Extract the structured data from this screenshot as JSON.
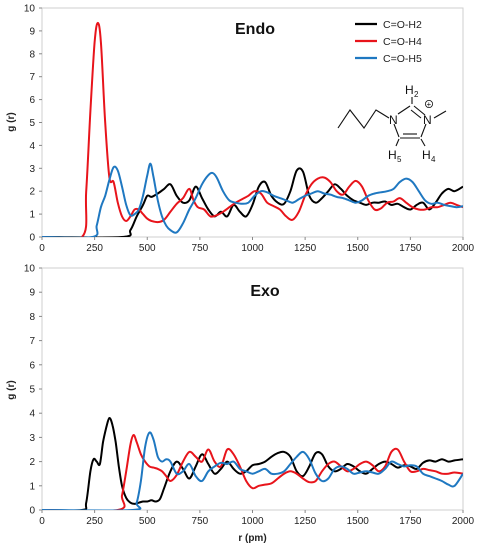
{
  "colors": {
    "H2": "#000000",
    "H4": "#e8141b",
    "H5": "#1f78c1"
  },
  "chart_data": [
    {
      "type": "line",
      "title": "Endo",
      "xlabel": "",
      "ylabel": "g (r)",
      "xlim": [
        0,
        2000
      ],
      "ylim": [
        0,
        10
      ],
      "xticks": [
        "0",
        "250",
        "500",
        "750",
        "1000",
        "1250",
        "1500",
        "1750",
        "2000"
      ],
      "yticks": [
        "0",
        "1",
        "2",
        "3",
        "4",
        "5",
        "6",
        "7",
        "8",
        "9",
        "10"
      ],
      "legend": "top-right",
      "series": [
        {
          "name": "C=O-H2",
          "color": "#000000",
          "x": [
            0,
            380,
            420,
            450,
            480,
            500,
            520,
            550,
            580,
            610,
            640,
            670,
            700,
            730,
            760,
            790,
            820,
            850,
            880,
            910,
            940,
            970,
            1000,
            1030,
            1060,
            1090,
            1120,
            1150,
            1180,
            1210,
            1240,
            1270,
            1300,
            1330,
            1360,
            1390,
            1420,
            1450,
            1480,
            1510,
            1540,
            1570,
            1600,
            1630,
            1660,
            1690,
            1720,
            1750,
            1780,
            1810,
            1840,
            1870,
            1900,
            1930,
            1960,
            2000
          ],
          "y": [
            0,
            0,
            0.3,
            0.9,
            1.4,
            1.8,
            1.75,
            1.9,
            2.1,
            2.3,
            1.8,
            1.5,
            1.6,
            2.2,
            1.7,
            1.2,
            0.9,
            1.1,
            0.9,
            1.4,
            1.1,
            0.9,
            1.4,
            2.2,
            2.4,
            1.8,
            1.5,
            1.45,
            2.0,
            2.9,
            2.85,
            1.8,
            1.5,
            1.7,
            2.0,
            2.3,
            2.1,
            1.8,
            1.6,
            1.5,
            1.4,
            1.5,
            1.5,
            1.55,
            1.4,
            1.45,
            1.3,
            1.2,
            1.4,
            1.5,
            1.2,
            1.5,
            1.9,
            2.1,
            2.0,
            2.2
          ]
        },
        {
          "name": "C=O-H4",
          "color": "#e8141b",
          "x": [
            0,
            190,
            210,
            230,
            250,
            265,
            280,
            300,
            320,
            340,
            360,
            380,
            400,
            420,
            440,
            460,
            480,
            500,
            520,
            550,
            580,
            610,
            640,
            670,
            700,
            720,
            740,
            770,
            800,
            830,
            860,
            890,
            920,
            950,
            980,
            1010,
            1040,
            1070,
            1100,
            1130,
            1160,
            1190,
            1220,
            1250,
            1280,
            1310,
            1340,
            1370,
            1400,
            1430,
            1460,
            1490,
            1520,
            1550,
            1580,
            1610,
            1640,
            1670,
            1700,
            1730,
            1760,
            1790,
            1820,
            1850,
            1880,
            1910,
            1940,
            1970,
            2000
          ],
          "y": [
            0,
            0,
            2.0,
            5.5,
            8.5,
            9.35,
            8.5,
            5.0,
            2.6,
            2.4,
            1.5,
            0.9,
            0.7,
            0.9,
            1.2,
            1.2,
            1.0,
            0.8,
            0.7,
            0.65,
            0.75,
            1.1,
            1.45,
            1.7,
            2.1,
            1.6,
            1.3,
            1.2,
            0.9,
            0.95,
            1.1,
            1.3,
            1.5,
            1.65,
            1.8,
            2.0,
            1.9,
            1.5,
            1.35,
            1.2,
            0.9,
            0.75,
            1.1,
            1.8,
            2.3,
            2.55,
            2.6,
            2.4,
            2.0,
            1.85,
            2.2,
            2.45,
            2.2,
            1.6,
            1.2,
            1.25,
            1.5,
            1.55,
            1.7,
            1.5,
            1.3,
            1.2,
            1.2,
            1.3,
            1.3,
            1.4,
            1.5,
            1.4,
            1.3
          ]
        },
        {
          "name": "C=O-H5",
          "color": "#1f78c1",
          "x": [
            0,
            240,
            260,
            280,
            300,
            320,
            340,
            360,
            380,
            400,
            420,
            440,
            460,
            480,
            500,
            515,
            530,
            550,
            570,
            590,
            610,
            640,
            670,
            700,
            730,
            760,
            790,
            810,
            830,
            860,
            890,
            920,
            950,
            980,
            1010,
            1040,
            1070,
            1100,
            1130,
            1160,
            1190,
            1220,
            1250,
            1280,
            1310,
            1340,
            1370,
            1400,
            1430,
            1460,
            1490,
            1520,
            1550,
            1580,
            1610,
            1640,
            1670,
            1700,
            1730,
            1760,
            1790,
            1820,
            1850,
            1880,
            1910,
            1940,
            1970,
            2000
          ],
          "y": [
            0,
            0,
            0.5,
            1.3,
            1.8,
            2.5,
            3.05,
            2.9,
            2.2,
            1.4,
            0.95,
            1.0,
            1.2,
            1.8,
            2.7,
            3.2,
            2.6,
            1.6,
            0.9,
            0.5,
            0.3,
            0.2,
            0.6,
            1.2,
            1.7,
            2.3,
            2.7,
            2.8,
            2.6,
            2.0,
            1.6,
            1.5,
            1.45,
            1.5,
            1.8,
            2.0,
            1.95,
            1.8,
            1.7,
            1.6,
            1.5,
            1.65,
            1.8,
            1.9,
            2.0,
            1.9,
            1.85,
            1.75,
            1.7,
            1.6,
            1.5,
            1.6,
            1.8,
            1.9,
            1.95,
            2.0,
            2.1,
            2.4,
            2.55,
            2.4,
            2.0,
            1.6,
            1.45,
            1.5,
            1.4,
            1.35,
            1.3,
            1.35
          ]
        }
      ]
    },
    {
      "type": "line",
      "title": "Exo",
      "xlabel": "r (pm)",
      "ylabel": "g (r)",
      "xlim": [
        0,
        2000
      ],
      "ylim": [
        0,
        10
      ],
      "xticks": [
        "0",
        "250",
        "500",
        "750",
        "1000",
        "1250",
        "1500",
        "1750",
        "2000"
      ],
      "yticks": [
        "0",
        "1",
        "2",
        "3",
        "4",
        "5",
        "6",
        "7",
        "8",
        "9",
        "10"
      ],
      "series": [
        {
          "name": "C=O-H2",
          "color": "#000000",
          "x": [
            0,
            190,
            210,
            230,
            245,
            260,
            275,
            290,
            305,
            320,
            335,
            350,
            365,
            380,
            400,
            420,
            440,
            460,
            480,
            500,
            520,
            540,
            560,
            580,
            610,
            640,
            670,
            700,
            730,
            760,
            790,
            820,
            850,
            880,
            910,
            940,
            970,
            1000,
            1030,
            1060,
            1090,
            1120,
            1150,
            1180,
            1210,
            1240,
            1270,
            1300,
            1330,
            1360,
            1390,
            1420,
            1450,
            1480,
            1510,
            1540,
            1570,
            1600,
            1630,
            1660,
            1690,
            1720,
            1750,
            1780,
            1810,
            1840,
            1870,
            1900,
            1930,
            1960,
            2000
          ],
          "y": [
            0,
            0,
            0.3,
            1.6,
            2.1,
            2.0,
            1.9,
            2.8,
            3.4,
            3.8,
            3.5,
            2.8,
            1.8,
            1.0,
            0.5,
            0.3,
            0.25,
            0.3,
            0.35,
            0.35,
            0.4,
            0.35,
            0.45,
            0.9,
            1.6,
            2.0,
            1.7,
            1.3,
            1.8,
            2.3,
            1.9,
            1.5,
            1.7,
            2.0,
            1.7,
            1.5,
            1.6,
            1.85,
            1.9,
            2.0,
            2.2,
            2.35,
            2.4,
            2.2,
            1.6,
            1.4,
            1.8,
            2.35,
            2.3,
            1.8,
            1.6,
            1.7,
            1.9,
            1.8,
            1.6,
            1.5,
            1.7,
            1.9,
            2.0,
            1.9,
            1.75,
            1.85,
            1.8,
            1.7,
            1.95,
            2.05,
            2.0,
            2.1,
            2.0,
            2.05,
            2.1
          ]
        },
        {
          "name": "C=O-H4",
          "color": "#e8141b",
          "x": [
            0,
            360,
            380,
            400,
            420,
            435,
            450,
            470,
            490,
            510,
            530,
            550,
            570,
            590,
            610,
            640,
            670,
            700,
            730,
            760,
            790,
            820,
            850,
            880,
            910,
            940,
            970,
            1000,
            1030,
            1060,
            1090,
            1120,
            1150,
            1180,
            1210,
            1240,
            1270,
            1300,
            1330,
            1360,
            1390,
            1420,
            1450,
            1480,
            1510,
            1540,
            1570,
            1600,
            1630,
            1660,
            1690,
            1720,
            1750,
            1780,
            1810,
            1840,
            1870,
            1900,
            1930,
            1960,
            2000
          ],
          "y": [
            0,
            0,
            0.6,
            1.6,
            2.7,
            3.1,
            2.8,
            2.3,
            2.0,
            1.8,
            1.75,
            1.7,
            1.6,
            1.4,
            1.2,
            1.45,
            2.0,
            2.4,
            2.2,
            2.0,
            2.5,
            2.0,
            1.8,
            2.5,
            2.3,
            1.8,
            1.2,
            0.9,
            1.0,
            1.05,
            1.1,
            1.3,
            1.5,
            1.6,
            1.5,
            1.3,
            1.15,
            1.2,
            1.6,
            1.9,
            2.0,
            1.8,
            1.6,
            1.7,
            1.9,
            2.0,
            1.85,
            1.6,
            1.8,
            2.4,
            2.5,
            2.0,
            1.6,
            1.6,
            1.7,
            1.65,
            1.6,
            1.5,
            1.5,
            1.55,
            1.5
          ]
        },
        {
          "name": "C=O-H5",
          "color": "#1f78c1",
          "x": [
            0,
            430,
            450,
            470,
            490,
            510,
            530,
            550,
            570,
            590,
            610,
            640,
            670,
            700,
            730,
            760,
            790,
            820,
            850,
            880,
            910,
            940,
            970,
            1000,
            1030,
            1060,
            1090,
            1120,
            1150,
            1180,
            1210,
            1240,
            1270,
            1300,
            1330,
            1360,
            1390,
            1420,
            1450,
            1480,
            1510,
            1540,
            1570,
            1600,
            1630,
            1660,
            1690,
            1720,
            1750,
            1780,
            1810,
            1840,
            1870,
            1900,
            1930,
            1960,
            2000
          ],
          "y": [
            0,
            0,
            0.3,
            1.2,
            2.6,
            3.2,
            2.9,
            2.2,
            2.0,
            2.1,
            2.0,
            1.5,
            1.6,
            1.9,
            1.4,
            1.2,
            1.6,
            1.8,
            1.95,
            1.9,
            2.0,
            1.7,
            1.6,
            1.5,
            1.6,
            1.7,
            1.5,
            1.5,
            1.6,
            1.9,
            2.2,
            2.4,
            2.1,
            1.5,
            1.2,
            1.3,
            1.7,
            1.8,
            1.7,
            1.5,
            1.55,
            1.6,
            1.55,
            1.5,
            1.7,
            2.0,
            1.9,
            1.8,
            1.85,
            1.8,
            1.5,
            1.4,
            1.3,
            1.2,
            1.05,
            1.0,
            1.5
          ]
        }
      ]
    }
  ],
  "molecule": {
    "labels": [
      "H",
      "N",
      "N",
      "H",
      "H"
    ],
    "subscripts": [
      "2",
      "5",
      "4"
    ],
    "charge": "+"
  }
}
